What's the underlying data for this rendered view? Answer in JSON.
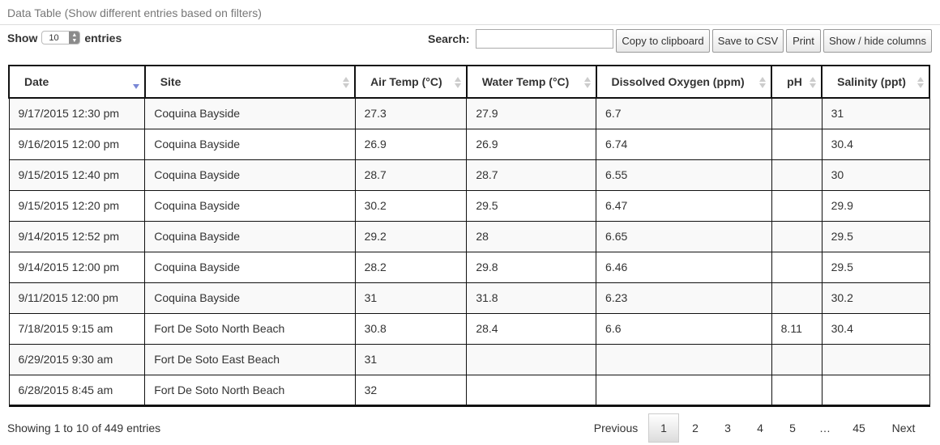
{
  "panel_title": "Data Table (Show different entries based on filters)",
  "length": {
    "before": "Show",
    "value": "10",
    "after": "entries"
  },
  "search": {
    "label": "Search:",
    "value": ""
  },
  "buttons": {
    "copy": "Copy to clipboard",
    "csv": "Save to CSV",
    "print": "Print",
    "columns": "Show / hide columns"
  },
  "columns": [
    "Date",
    "Site",
    "Air Temp (°C)",
    "Water Temp (°C)",
    "Dissolved Oxygen (ppm)",
    "pH",
    "Salinity (ppt)"
  ],
  "rows": [
    [
      "9/17/2015 12:30 pm",
      "Coquina Bayside",
      "27.3",
      "27.9",
      "6.7",
      "",
      "31"
    ],
    [
      "9/16/2015 12:00 pm",
      "Coquina Bayside",
      "26.9",
      "26.9",
      "6.74",
      "",
      "30.4"
    ],
    [
      "9/15/2015 12:40 pm",
      "Coquina Bayside",
      "28.7",
      "28.7",
      "6.55",
      "",
      "30"
    ],
    [
      "9/15/2015 12:20 pm",
      "Coquina Bayside",
      "30.2",
      "29.5",
      "6.47",
      "",
      "29.9"
    ],
    [
      "9/14/2015 12:52 pm",
      "Coquina Bayside",
      "29.2",
      "28",
      "6.65",
      "",
      "29.5"
    ],
    [
      "9/14/2015 12:00 pm",
      "Coquina Bayside",
      "28.2",
      "29.8",
      "6.46",
      "",
      "29.5"
    ],
    [
      "9/11/2015 12:00 pm",
      "Coquina Bayside",
      "31",
      "31.8",
      "6.23",
      "",
      "30.2"
    ],
    [
      "7/18/2015 9:15 am",
      "Fort De Soto North Beach",
      "30.8",
      "28.4",
      "6.6",
      "8.11",
      "30.4"
    ],
    [
      "6/29/2015 9:30 am",
      "Fort De Soto East Beach",
      "31",
      "",
      "",
      "",
      ""
    ],
    [
      "6/28/2015 8:45 am",
      "Fort De Soto North Beach",
      "32",
      "",
      "",
      "",
      ""
    ]
  ],
  "info": "Showing 1 to 10 of 449 entries",
  "pagination": {
    "previous": "Previous",
    "pages": [
      "1",
      "2",
      "3",
      "4",
      "5",
      "…",
      "45"
    ],
    "current": "1",
    "next": "Next"
  },
  "colors": {
    "sort_active": "#7a88d6",
    "border": "#111111",
    "stripe": "#f9f9f9"
  }
}
